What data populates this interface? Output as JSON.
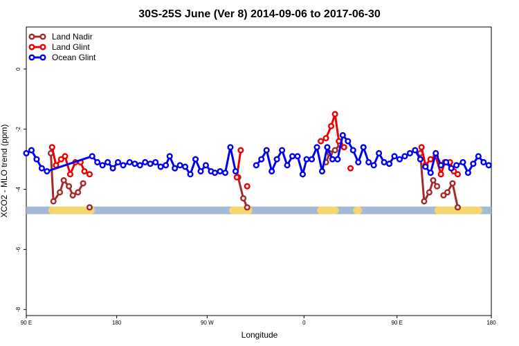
{
  "chart_data": {
    "type": "line",
    "title": "30S-25S June (Ver 8)   2014-09-06 to 2017-06-30",
    "xlabel": "Longitude",
    "ylabel": "XCO2 - MLO trend (ppm)",
    "xlim": [
      90,
      450
    ],
    "ylim": [
      -8.2,
      1.4
    ],
    "grid": false,
    "legend_position": "top-left",
    "x_ticks": [
      {
        "value": 90,
        "label": "90 E"
      },
      {
        "value": 160,
        "label": "180"
      },
      {
        "value": 230,
        "label": "90 W"
      },
      {
        "value": 305,
        "label": "0"
      },
      {
        "value": 377,
        "label": "90 E"
      },
      {
        "value": 450,
        "label": "180"
      }
    ],
    "y_ticks": [
      {
        "value": 0,
        "label": "0"
      },
      {
        "value": -2,
        "label": "-2"
      },
      {
        "value": -4,
        "label": "-4"
      },
      {
        "value": -6,
        "label": "-6"
      },
      {
        "value": -8,
        "label": "-8"
      }
    ],
    "land_ocean_strip": {
      "y_level": -4.7,
      "ocean_color": "#a3b9d6",
      "land_color": "#f7d56e",
      "land_x_ranges": [
        [
          110,
          140
        ],
        [
          250,
          262
        ],
        [
          318,
          329
        ],
        [
          346,
          347
        ],
        [
          409,
          440
        ]
      ]
    },
    "series": [
      {
        "name": "Land Nadir",
        "color": "#a52a2a",
        "segments": [
          {
            "x": [
              109,
              111,
              116,
              119,
              123,
              126,
              130,
              134
            ],
            "y": [
              -2.8,
              -4.4,
              -4.1,
              -3.7,
              -3.9,
              -4.2,
              -4.1,
              -3.8
            ]
          },
          {
            "x": [
              139
            ],
            "y": [
              -4.6
            ]
          },
          {
            "x": [
              254,
              258,
              261
            ],
            "y": [
              -3.6,
              -4.3,
              -4.6
            ]
          },
          {
            "x": [
              322,
              325,
              329,
              333
            ],
            "y": [
              -3.1,
              -2.8,
              -2.7,
              -2.5
            ]
          },
          {
            "x": [
              395,
              398,
              402,
              405,
              408
            ],
            "y": [
              -2.8,
              -4.4,
              -4.1,
              -3.7,
              -3.9
            ]
          },
          {
            "x": [
              413,
              416,
              420,
              424
            ],
            "y": [
              -4.2,
              -4.1,
              -3.8,
              -4.6
            ]
          }
        ]
      },
      {
        "name": "Land Glint",
        "color": "#ee0000",
        "segments": [
          {
            "x": [
              110,
              113,
              117,
              120,
              124,
              128,
              132,
              135,
              139
            ],
            "y": [
              -2.6,
              -3.2,
              -3.0,
              -2.9,
              -3.5,
              -3.1,
              -3.1,
              -3.4,
              -3.5
            ]
          },
          {
            "x": [
              253,
              256
            ],
            "y": [
              -3.6,
              -2.7
            ]
          },
          {
            "x": [
              261
            ],
            "y": [
              -3.9
            ]
          },
          {
            "x": [
              318,
              322,
              326,
              329,
              332,
              336
            ],
            "y": [
              -2.4,
              -2.3,
              -1.9,
              -1.5,
              -2.4,
              -2.6
            ]
          },
          {
            "x": [
              341
            ],
            "y": [
              -3.3
            ]
          },
          {
            "x": [
              396,
              399,
              403,
              407,
              411,
              414,
              418,
              421
            ],
            "y": [
              -2.6,
              -3.2,
              -3.0,
              -2.9,
              -3.5,
              -3.1,
              -3.1,
              -3.4
            ]
          },
          {
            "x": [
              424
            ],
            "y": [
              -3.5
            ]
          }
        ]
      },
      {
        "name": "Ocean Glint",
        "color": "#0000ee",
        "segments": [
          {
            "x": [
              90,
              94,
              98,
              102,
              106,
              141,
              145,
              149,
              153,
              157,
              161,
              165,
              170,
              174,
              178,
              182,
              186,
              190,
              194,
              198,
              201,
              205,
              209,
              213,
              217,
              221,
              225,
              229,
              233,
              236,
              240,
              244,
              248,
              252
            ],
            "y": [
              -2.8,
              -2.7,
              -3.0,
              -3.3,
              -3.4,
              -2.9,
              -3.1,
              -3.2,
              -3.1,
              -3.3,
              -3.1,
              -3.2,
              -3.1,
              -3.15,
              -3.2,
              -3.1,
              -3.15,
              -3.1,
              -3.25,
              -3.2,
              -2.9,
              -3.3,
              -3.2,
              -3.25,
              -3.5,
              -3.0,
              -3.4,
              -3.2,
              -3.4,
              -3.45,
              -3.4,
              -3.45,
              -2.6,
              -3.4
            ]
          },
          {
            "x": [
              268,
              272,
              276,
              280,
              284,
              288,
              292,
              296,
              300,
              304,
              307,
              311,
              315,
              319,
              323,
              327,
              331,
              335,
              339,
              343,
              347,
              351,
              355,
              359,
              363,
              367,
              371,
              375,
              379,
              383,
              387,
              391,
              395
            ],
            "y": [
              -3.2,
              -3.0,
              -2.7,
              -3.4,
              -3.0,
              -2.7,
              -3.2,
              -2.9,
              -2.9,
              -3.5,
              -3.0,
              -3.0,
              -2.6,
              -3.4,
              -2.6,
              -3.0,
              -3.0,
              -2.2,
              -2.4,
              -2.7,
              -3.1,
              -2.6,
              -3.1,
              -3.2,
              -2.8,
              -3.1,
              -3.15,
              -2.9,
              -3.0,
              -2.9,
              -2.8,
              -2.7,
              -3.0
            ]
          },
          {
            "x": [
              399,
              403,
              407,
              411,
              415,
              419,
              423,
              428,
              432,
              436,
              440,
              444,
              448
            ],
            "y": [
              -3.25,
              -3.45,
              -2.8,
              -3.2,
              -3.1,
              -3.3,
              -3.2,
              -3.1,
              -3.45,
              -3.15,
              -2.9,
              -3.1,
              -3.2
            ]
          }
        ]
      }
    ]
  }
}
